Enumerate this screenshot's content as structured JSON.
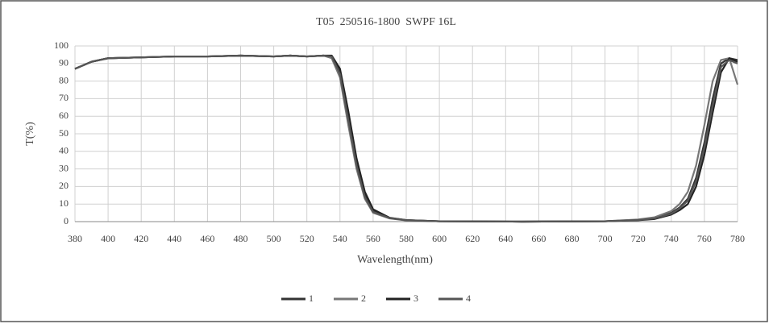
{
  "chart_data": {
    "type": "line",
    "title": "T05  250516-1800  SWPF 16L",
    "x_label": "Wavelength(nm)",
    "y_label": "T(%)",
    "x": [
      380,
      390,
      400,
      420,
      440,
      460,
      480,
      500,
      510,
      520,
      530,
      535,
      540,
      545,
      550,
      555,
      560,
      570,
      580,
      600,
      650,
      700,
      720,
      730,
      740,
      745,
      750,
      755,
      760,
      765,
      770,
      775,
      780
    ],
    "series": [
      {
        "name": "1",
        "color": "#333333",
        "values": [
          87,
          91,
          93,
          93.5,
          94,
          94,
          94.5,
          94,
          94.5,
          94,
          94.5,
          94,
          85,
          60,
          33,
          15,
          6,
          2,
          0.8,
          0.2,
          0,
          0.2,
          1,
          2,
          5,
          8,
          13,
          25,
          45,
          70,
          90,
          93,
          92
        ]
      },
      {
        "name": "2",
        "color": "#777777",
        "values": [
          87,
          91,
          93,
          93.5,
          94,
          94,
          94.5,
          94,
          94.5,
          94,
          94.5,
          93,
          82,
          55,
          30,
          13,
          5,
          1.8,
          0.7,
          0.2,
          0,
          0.2,
          1.2,
          2.5,
          6,
          10,
          17,
          32,
          55,
          80,
          92,
          93,
          78
        ]
      },
      {
        "name": "3",
        "color": "#222222",
        "values": [
          87,
          91,
          93,
          93.5,
          94,
          94,
          94.5,
          94,
          94.5,
          94,
          94.5,
          94.5,
          87,
          63,
          36,
          17,
          7,
          2.2,
          0.9,
          0.2,
          0,
          0.2,
          0.8,
          1.5,
          4,
          6.5,
          10,
          20,
          38,
          62,
          85,
          93,
          91
        ]
      },
      {
        "name": "4",
        "color": "#555555",
        "values": [
          87,
          91,
          93,
          93.5,
          94,
          94,
          94.5,
          94,
          94.5,
          94,
          94.5,
          94,
          84,
          58,
          32,
          14,
          5.5,
          2,
          0.8,
          0.2,
          0,
          0.2,
          0.9,
          1.8,
          4.5,
          7.5,
          12,
          23,
          42,
          66,
          88,
          92,
          90
        ]
      }
    ],
    "xlim": [
      380,
      780
    ],
    "xticks": [
      380,
      400,
      420,
      440,
      460,
      480,
      500,
      520,
      540,
      560,
      580,
      600,
      620,
      640,
      660,
      680,
      700,
      720,
      740,
      760,
      780
    ],
    "ylim": [
      0,
      100
    ],
    "yticks": [
      0,
      10,
      20,
      30,
      40,
      50,
      60,
      70,
      80,
      90,
      100
    ],
    "grid": true,
    "legend": "bottom"
  }
}
